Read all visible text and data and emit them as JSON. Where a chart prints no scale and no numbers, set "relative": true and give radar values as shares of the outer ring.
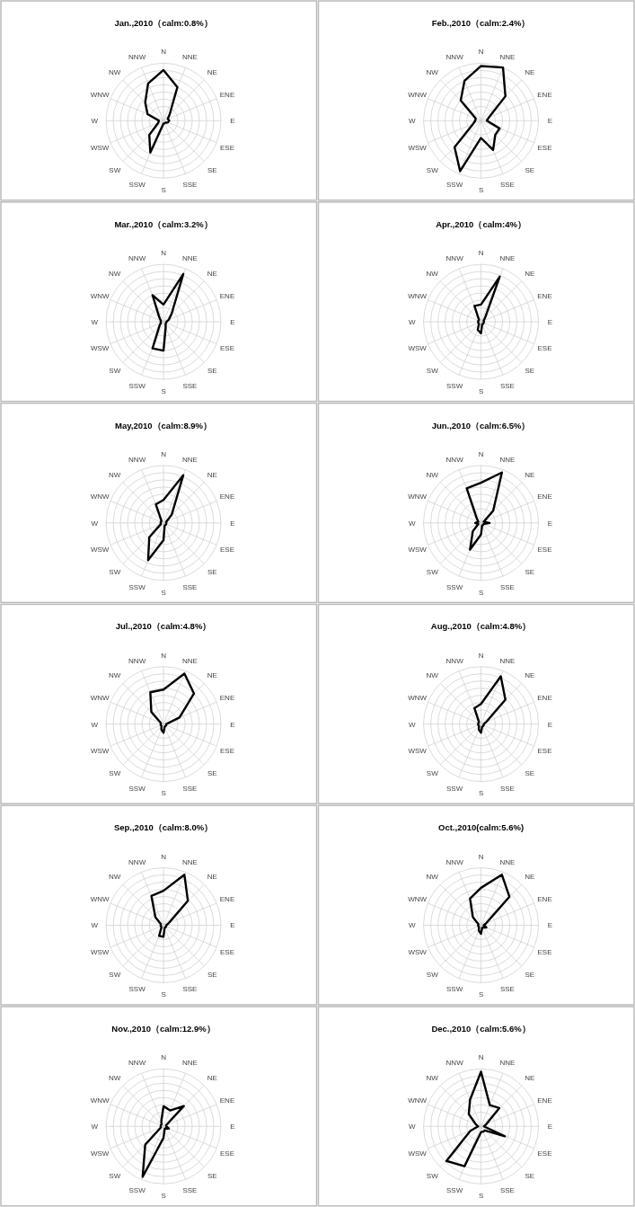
{
  "chart_data": [
    {
      "type": "radar",
      "title": "Jan.,2010（calm:0.8%）",
      "relative": true,
      "grid": true,
      "categories": [
        "N",
        "NNE",
        "NE",
        "ENE",
        "E",
        "ESE",
        "SE",
        "SSE",
        "S",
        "SSW",
        "SW",
        "WSW",
        "W",
        "WNW",
        "NW",
        "NNW"
      ],
      "series": [
        {
          "color": "#000000",
          "values": [
            0.88,
            0.63,
            0.15,
            0.08,
            0.1,
            0.08,
            0.05,
            0.05,
            0.05,
            0.6,
            0.35,
            0.1,
            0.08,
            0.3,
            0.45,
            0.7
          ]
        }
      ]
    },
    {
      "type": "radar",
      "title": "Feb.,2010（calm:2.4%）",
      "relative": true,
      "grid": true,
      "categories": [
        "N",
        "NNE",
        "NE",
        "ENE",
        "E",
        "ESE",
        "SE",
        "SSE",
        "S",
        "SSW",
        "SW",
        "WSW",
        "W",
        "WNW",
        "NW",
        "NNW"
      ],
      "series": [
        {
          "color": "#000000",
          "values": [
            0.95,
            1.0,
            0.6,
            0.15,
            0.1,
            0.35,
            0.35,
            0.55,
            0.3,
            0.95,
            0.65,
            0.15,
            0.1,
            0.1,
            0.5,
            0.75
          ]
        }
      ]
    },
    {
      "type": "radar",
      "title": "Mar.,2010（calm:3.2%）",
      "relative": true,
      "grid": true,
      "categories": [
        "N",
        "NNE",
        "NE",
        "ENE",
        "E",
        "ESE",
        "SE",
        "SSE",
        "S",
        "SSW",
        "SW",
        "WSW",
        "W",
        "WNW",
        "NW",
        "NNW"
      ],
      "series": [
        {
          "color": "#000000",
          "values": [
            0.3,
            0.9,
            0.2,
            0.1,
            0.05,
            0.05,
            0.05,
            0.1,
            0.5,
            0.5,
            0.1,
            0.05,
            0.05,
            0.05,
            0.1,
            0.5
          ]
        }
      ]
    },
    {
      "type": "radar",
      "title": "Apr.,2010（calm:4%）",
      "relative": true,
      "grid": true,
      "categories": [
        "N",
        "NNE",
        "NE",
        "ENE",
        "E",
        "ESE",
        "SE",
        "SSE",
        "S",
        "SSW",
        "SW",
        "WSW",
        "W",
        "WNW",
        "NW",
        "NNW"
      ],
      "series": [
        {
          "color": "#000000",
          "values": [
            0.3,
            0.85,
            0.1,
            0.05,
            0.05,
            0.05,
            0.05,
            0.05,
            0.2,
            0.15,
            0.05,
            0.05,
            0.05,
            0.05,
            0.05,
            0.3
          ]
        }
      ]
    },
    {
      "type": "radar",
      "title": "May,2010（calm:8.9%）",
      "relative": true,
      "grid": true,
      "categories": [
        "N",
        "NNE",
        "NE",
        "ENE",
        "E",
        "ESE",
        "SE",
        "SSE",
        "S",
        "SSW",
        "SW",
        "WSW",
        "W",
        "WNW",
        "NW",
        "NNW"
      ],
      "series": [
        {
          "color": "#000000",
          "values": [
            0.4,
            0.9,
            0.2,
            0.05,
            0.05,
            0.05,
            0.05,
            0.05,
            0.3,
            0.7,
            0.35,
            0.05,
            0.05,
            0.05,
            0.05,
            0.35
          ]
        }
      ]
    },
    {
      "type": "radar",
      "title": "Jun.,2010（calm:6.5%）",
      "relative": true,
      "grid": true,
      "categories": [
        "N",
        "NNE",
        "NE",
        "ENE",
        "E",
        "ESE",
        "SE",
        "SSE",
        "S",
        "SSW",
        "SW",
        "WSW",
        "W",
        "WNW",
        "NW",
        "NNW"
      ],
      "series": [
        {
          "color": "#000000",
          "values": [
            0.7,
            0.95,
            0.3,
            0.05,
            0.15,
            0.05,
            0.05,
            0.05,
            0.2,
            0.5,
            0.2,
            0.05,
            0.1,
            0.05,
            0.1,
            0.65
          ]
        }
      ]
    },
    {
      "type": "radar",
      "title": "Jul.,2010（calm:4.8%）",
      "relative": true,
      "grid": true,
      "categories": [
        "N",
        "NNE",
        "NE",
        "ENE",
        "E",
        "ESE",
        "SE",
        "SSE",
        "S",
        "SSW",
        "SW",
        "WSW",
        "W",
        "WNW",
        "NW",
        "NNW"
      ],
      "series": [
        {
          "color": "#000000",
          "values": [
            0.6,
            0.95,
            0.75,
            0.3,
            0.05,
            0.05,
            0.05,
            0.05,
            0.15,
            0.1,
            0.05,
            0.05,
            0.05,
            0.05,
            0.3,
            0.6
          ]
        }
      ]
    },
    {
      "type": "radar",
      "title": "Aug.,2010（calm:4.8%）",
      "relative": true,
      "grid": true,
      "categories": [
        "N",
        "NNE",
        "NE",
        "ENE",
        "E",
        "ESE",
        "SE",
        "SSE",
        "S",
        "SSW",
        "SW",
        "WSW",
        "W",
        "WNW",
        "NW",
        "NNW"
      ],
      "series": [
        {
          "color": "#000000",
          "values": [
            0.35,
            0.9,
            0.6,
            0.1,
            0.05,
            0.05,
            0.05,
            0.05,
            0.15,
            0.1,
            0.05,
            0.05,
            0.05,
            0.05,
            0.05,
            0.3
          ]
        }
      ]
    },
    {
      "type": "radar",
      "title": "Sep.,2010（calm:8.0%）",
      "relative": true,
      "grid": true,
      "categories": [
        "N",
        "NNE",
        "NE",
        "ENE",
        "E",
        "ESE",
        "SE",
        "SSE",
        "S",
        "SSW",
        "SW",
        "WSW",
        "W",
        "WNW",
        "NW",
        "NNW"
      ],
      "series": [
        {
          "color": "#000000",
          "values": [
            0.6,
            0.95,
            0.6,
            0.1,
            0.05,
            0.05,
            0.05,
            0.05,
            0.2,
            0.2,
            0.05,
            0.05,
            0.05,
            0.05,
            0.2,
            0.55
          ]
        }
      ]
    },
    {
      "type": "radar",
      "title": "Oct.,2010(calm:5.6%)",
      "relative": true,
      "grid": true,
      "categories": [
        "N",
        "NNE",
        "NE",
        "ENE",
        "E",
        "ESE",
        "SE",
        "SSE",
        "S",
        "SSW",
        "SW",
        "WSW",
        "W",
        "WNW",
        "NW",
        "NNW"
      ],
      "series": [
        {
          "color": "#000000",
          "values": [
            0.65,
            0.95,
            0.7,
            0.1,
            0.05,
            0.1,
            0.05,
            0.05,
            0.15,
            0.1,
            0.05,
            0.05,
            0.05,
            0.05,
            0.2,
            0.5
          ]
        }
      ]
    },
    {
      "type": "radar",
      "title": "Nov.,2010（calm:12.9%）",
      "relative": true,
      "grid": true,
      "categories": [
        "N",
        "NNE",
        "NE",
        "ENE",
        "E",
        "ESE",
        "SE",
        "SSE",
        "S",
        "SSW",
        "SW",
        "WSW",
        "W",
        "WNW",
        "NW",
        "NNW"
      ],
      "series": [
        {
          "color": "#000000",
          "values": [
            0.35,
            0.3,
            0.5,
            0.05,
            0.05,
            0.1,
            0.05,
            0.05,
            0.2,
            0.95,
            0.45,
            0.05,
            0.05,
            0.05,
            0.05,
            0.1
          ]
        }
      ]
    },
    {
      "type": "radar",
      "title": "Dec.,2010（calm:5.6%）",
      "relative": true,
      "grid": true,
      "categories": [
        "N",
        "NNE",
        "NE",
        "ENE",
        "E",
        "ESE",
        "SE",
        "SSE",
        "S",
        "SSW",
        "SW",
        "WSW",
        "W",
        "WNW",
        "NW",
        "NNW"
      ],
      "series": [
        {
          "color": "#000000",
          "values": [
            0.95,
            0.4,
            0.45,
            0.1,
            0.05,
            0.45,
            0.1,
            0.1,
            0.1,
            0.75,
            0.85,
            0.2,
            0.05,
            0.1,
            0.3,
            0.5
          ]
        }
      ]
    }
  ]
}
